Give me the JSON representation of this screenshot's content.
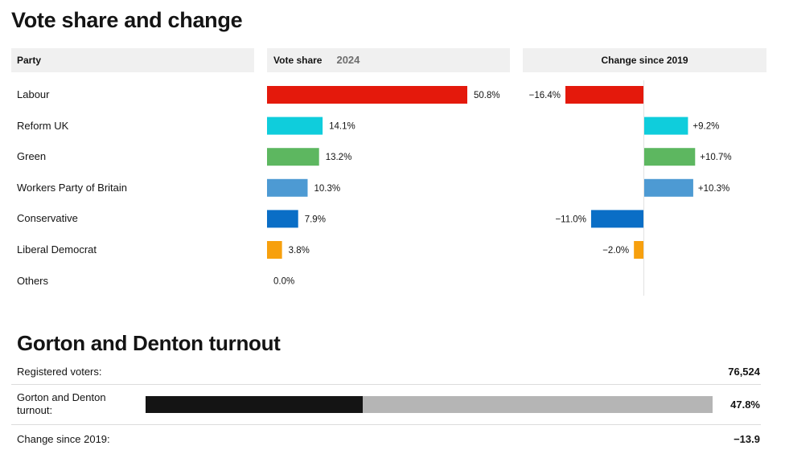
{
  "vote_section": {
    "title": "Vote share and change",
    "header_party": "Party",
    "header_vote_share": "Vote share",
    "header_year": "2024",
    "header_change": "Change since 2019"
  },
  "chart_data": {
    "type": "bar",
    "categories": [
      "Labour",
      "Reform UK",
      "Green",
      "Workers Party of Britain",
      "Conservative",
      "Liberal Democrat",
      "Others"
    ],
    "series": [
      {
        "name": "Vote share",
        "values": [
          50.8,
          14.1,
          13.2,
          10.3,
          7.9,
          3.8,
          0.0
        ],
        "labels": [
          "50.8%",
          "14.1%",
          "13.2%",
          "10.3%",
          "7.9%",
          "3.8%",
          "0.0%"
        ]
      },
      {
        "name": "Change since 2019",
        "values": [
          -16.4,
          9.2,
          10.7,
          10.3,
          -11.0,
          -2.0,
          null
        ],
        "labels": [
          "−16.4%",
          "+9.2%",
          "+10.7%",
          "+10.3%",
          "−11.0%",
          "−2.0%",
          ""
        ]
      }
    ],
    "colors": [
      "#e4190c",
      "#0fcddc",
      "#5db760",
      "#4d9ad3",
      "#0a6ec6",
      "#f7a00e",
      "#cccccc"
    ],
    "share_max": 50.8,
    "change_max_abs": 16.4
  },
  "turnout_section": {
    "title": "Gorton and Denton turnout",
    "registered_label": "Registered voters:",
    "registered_value": "76,524",
    "turnout_label_line1": "Gorton and Denton",
    "turnout_label_line2": "turnout:",
    "turnout_value": "47.8%",
    "turnout_fraction": 0.478,
    "change_label": "Change since 2019:",
    "change_value": "−13.9"
  }
}
